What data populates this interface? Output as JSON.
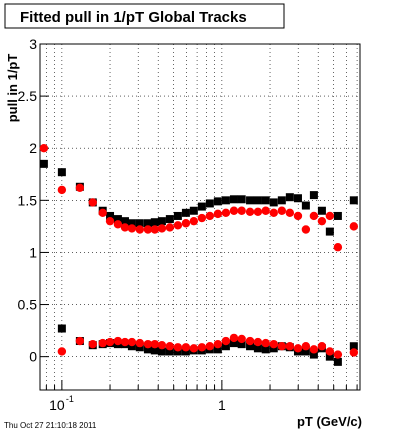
{
  "chart_data": {
    "type": "scatter",
    "title": "Fitted pull in 1/pT  Global Tracks",
    "x_label": "pT (GeV/c)",
    "y_label": "pull in 1/pT",
    "footer": "Thu Oct 27 21:10:18 2011",
    "log_x": true,
    "grid": true,
    "xlim": [
      0.073,
      7.3
    ],
    "ylim": [
      -0.32,
      3.0
    ],
    "xticks": [
      {
        "value": 0.1,
        "label": "10",
        "sup": "-1"
      },
      1
    ],
    "xminor": [
      0.08,
      0.09,
      0.2,
      0.3,
      0.4,
      0.5,
      0.6,
      0.7,
      0.8,
      0.9,
      2,
      3,
      4,
      5,
      6,
      7
    ],
    "yticks": [
      0,
      0.5,
      1,
      1.5,
      2,
      2.5,
      3
    ],
    "series": [
      {
        "color": "#000000",
        "marker": "square",
        "x": [
          0.0772,
          0.1,
          0.1296,
          0.156,
          0.18,
          0.2,
          0.224,
          0.248,
          0.274,
          0.307,
          0.345,
          0.381,
          0.422,
          0.473,
          0.531,
          0.596,
          0.668,
          0.75,
          0.841,
          0.944,
          1.06,
          1.19,
          1.33,
          1.5,
          1.68,
          1.88,
          2.11,
          2.37,
          2.66,
          2.99,
          3.35,
          3.76,
          4.22,
          4.73,
          5.31,
          6.68
        ],
        "values": [
          1.85,
          1.77,
          1.63,
          1.48,
          1.4,
          1.35,
          1.32,
          1.3,
          1.28,
          1.28,
          1.28,
          1.29,
          1.3,
          1.32,
          1.35,
          1.38,
          1.4,
          1.44,
          1.47,
          1.49,
          1.5,
          1.51,
          1.51,
          1.5,
          1.5,
          1.5,
          1.48,
          1.5,
          1.53,
          1.52,
          1.45,
          1.55,
          1.4,
          1.2,
          1.35,
          1.5
        ]
      },
      {
        "color": "#000000",
        "marker": "square",
        "x": [
          0.1,
          0.1296,
          0.156,
          0.18,
          0.2,
          0.224,
          0.248,
          0.274,
          0.307,
          0.345,
          0.381,
          0.422,
          0.473,
          0.531,
          0.596,
          0.668,
          0.75,
          0.841,
          0.944,
          1.06,
          1.19,
          1.33,
          1.5,
          1.68,
          1.88,
          2.11,
          2.37,
          2.66,
          2.99,
          3.35,
          3.76,
          4.22,
          4.73,
          5.31,
          6.68
        ],
        "values": [
          0.27,
          0.15,
          0.11,
          0.12,
          0.13,
          0.12,
          0.12,
          0.1,
          0.09,
          0.07,
          0.06,
          0.05,
          0.05,
          0.05,
          0.05,
          0.06,
          0.06,
          0.07,
          0.07,
          0.1,
          0.13,
          0.12,
          0.1,
          0.08,
          0.07,
          0.08,
          0.1,
          0.09,
          0.05,
          0.05,
          0.02,
          0.08,
          0.0,
          -0.05,
          0.1
        ]
      },
      {
        "color": "#ff0000",
        "marker": "circle",
        "x": [
          0.0772,
          0.1,
          0.1296,
          0.156,
          0.18,
          0.2,
          0.224,
          0.248,
          0.274,
          0.307,
          0.345,
          0.381,
          0.422,
          0.473,
          0.531,
          0.596,
          0.668,
          0.75,
          0.841,
          0.944,
          1.06,
          1.19,
          1.33,
          1.5,
          1.68,
          1.88,
          2.11,
          2.37,
          2.66,
          2.99,
          3.35,
          3.76,
          4.22,
          4.73,
          5.31,
          6.68
        ],
        "values": [
          2.0,
          1.6,
          1.62,
          1.48,
          1.38,
          1.3,
          1.27,
          1.24,
          1.23,
          1.22,
          1.22,
          1.22,
          1.23,
          1.24,
          1.26,
          1.28,
          1.3,
          1.33,
          1.35,
          1.37,
          1.38,
          1.4,
          1.4,
          1.39,
          1.39,
          1.4,
          1.38,
          1.4,
          1.38,
          1.35,
          1.22,
          1.35,
          1.3,
          1.35,
          1.05,
          1.25
        ]
      },
      {
        "color": "#ff0000",
        "marker": "circle",
        "x": [
          0.1,
          0.1296,
          0.156,
          0.18,
          0.2,
          0.224,
          0.248,
          0.274,
          0.307,
          0.345,
          0.381,
          0.422,
          0.473,
          0.531,
          0.596,
          0.668,
          0.75,
          0.841,
          0.944,
          1.06,
          1.19,
          1.33,
          1.5,
          1.68,
          1.88,
          2.11,
          2.37,
          2.66,
          2.99,
          3.35,
          3.76,
          4.22,
          4.73,
          5.31,
          6.68
        ],
        "values": [
          0.05,
          0.15,
          0.12,
          0.13,
          0.14,
          0.15,
          0.14,
          0.14,
          0.13,
          0.12,
          0.12,
          0.11,
          0.1,
          0.09,
          0.09,
          0.08,
          0.09,
          0.1,
          0.12,
          0.15,
          0.18,
          0.17,
          0.15,
          0.14,
          0.13,
          0.12,
          0.1,
          0.1,
          0.08,
          0.1,
          0.07,
          0.1,
          0.05,
          0.02,
          0.04
        ]
      }
    ]
  }
}
